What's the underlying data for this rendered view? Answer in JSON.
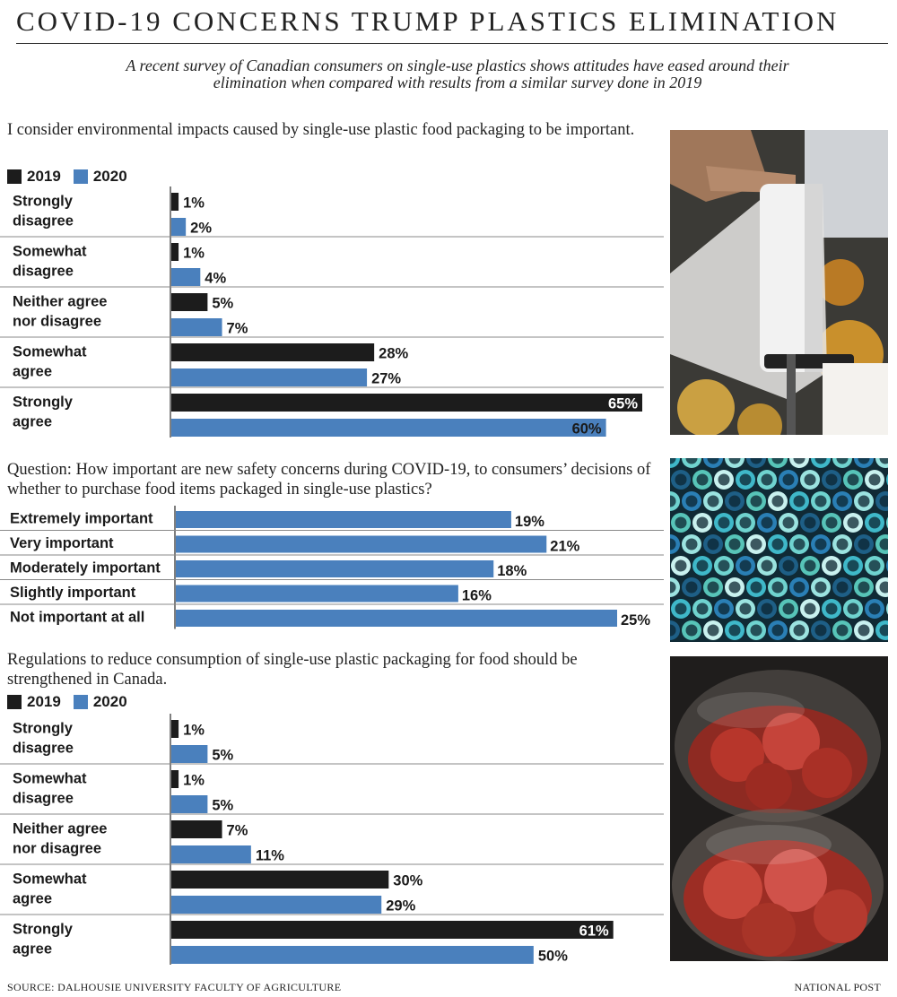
{
  "title": "COVID-19 CONCERNS TRUMP PLASTICS ELIMINATION",
  "subtitle": "A recent survey of Canadian consumers on single-use plastics shows attitudes have eased around their elimination when compared with results from a similar survey done in 2019",
  "colors": {
    "year_2019": "#1c1c1c",
    "year_2020": "#4a80bd",
    "gridline": "#8a8a8a"
  },
  "legend": {
    "label_2019": "2019",
    "label_2020": "2020"
  },
  "chart_data": [
    {
      "type": "bar",
      "orientation": "horizontal",
      "title": "I consider environmental impacts caused by single-use plastic food packaging to be important.",
      "categories": [
        [
          "Strongly",
          "disagree"
        ],
        [
          "Somewhat",
          "disagree"
        ],
        [
          "Neither agree",
          "nor disagree"
        ],
        [
          "Somewhat",
          "agree"
        ],
        [
          "Strongly",
          "agree"
        ]
      ],
      "series": [
        {
          "name": "2019",
          "values": [
            1,
            1,
            5,
            28,
            65
          ]
        },
        {
          "name": "2020",
          "values": [
            2,
            4,
            7,
            27,
            60
          ]
        }
      ],
      "unit": "%",
      "xlim": [
        0,
        65
      ]
    },
    {
      "type": "bar",
      "orientation": "horizontal",
      "title": "Question: How important are new safety concerns during COVID-19, to consumers’ decisions of whether to purchase food items packaged in single-use plastics?",
      "categories": [
        [
          "Extremely important"
        ],
        [
          "Very important"
        ],
        [
          "Moderately important"
        ],
        [
          "Slightly important"
        ],
        [
          "Not important at all"
        ]
      ],
      "series": [
        {
          "name": "2020",
          "values": [
            19,
            21,
            18,
            16,
            25
          ]
        }
      ],
      "unit": "%",
      "xlim": [
        0,
        25
      ]
    },
    {
      "type": "bar",
      "orientation": "horizontal",
      "title": "Regulations to reduce consumption of single-use plastic packaging for food should be strengthened in Canada.",
      "categories": [
        [
          "Strongly",
          "disagree"
        ],
        [
          "Somewhat",
          "disagree"
        ],
        [
          "Neither agree",
          "nor disagree"
        ],
        [
          "Somewhat",
          "agree"
        ],
        [
          "Strongly",
          "agree"
        ]
      ],
      "series": [
        {
          "name": "2019",
          "values": [
            1,
            1,
            7,
            30,
            61
          ]
        },
        {
          "name": "2020",
          "values": [
            5,
            5,
            11,
            29,
            50
          ]
        }
      ],
      "unit": "%",
      "xlim": [
        0,
        65
      ]
    }
  ],
  "photos": [
    {
      "name": "plastic-roll-photo"
    },
    {
      "name": "straws-photo"
    },
    {
      "name": "tomatoes-container-photo"
    }
  ],
  "footer": {
    "source": "SOURCE: DALHOUSIE UNIVERSITY FACULTY OF AGRICULTURE",
    "credit": "NATIONAL POST"
  }
}
